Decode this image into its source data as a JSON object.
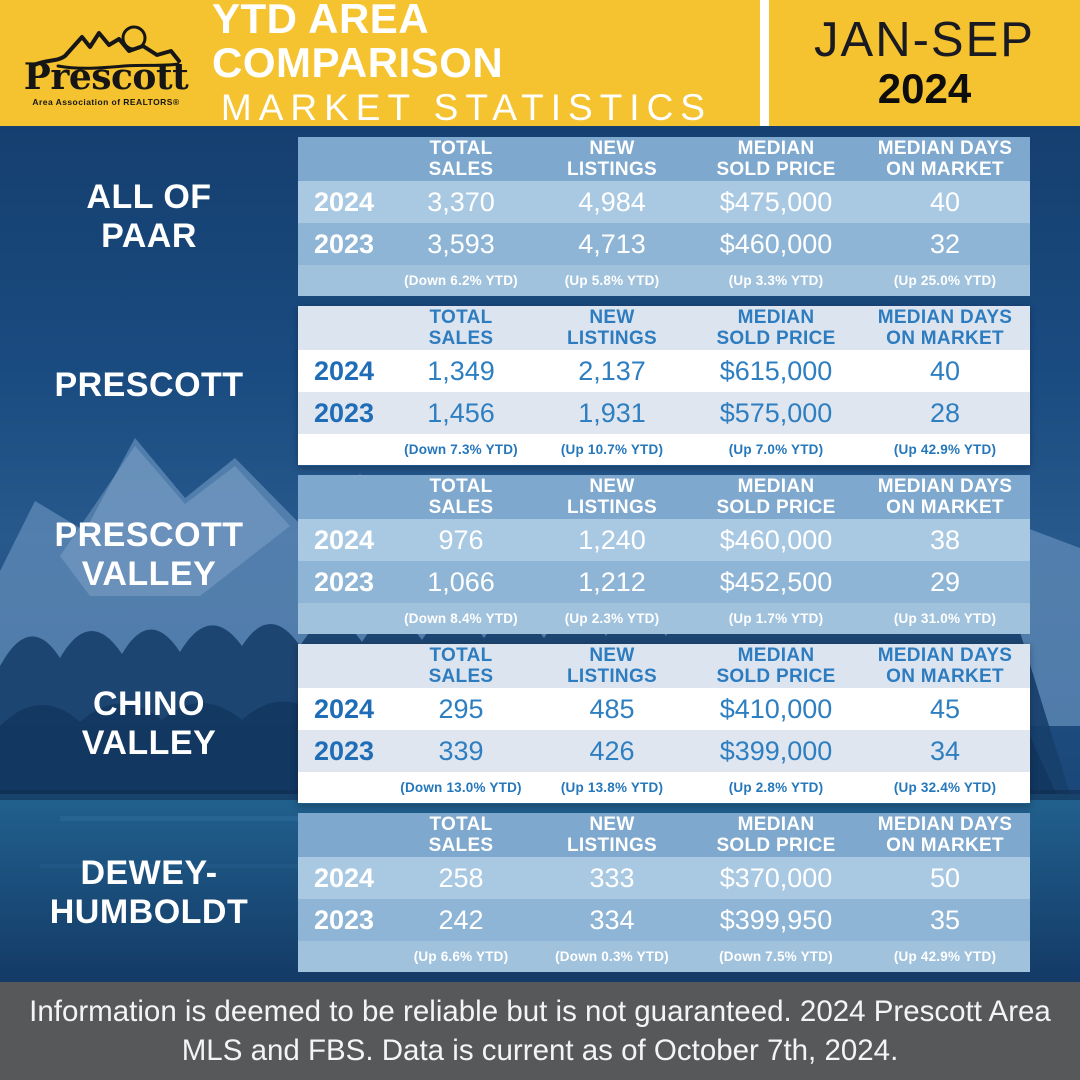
{
  "header": {
    "logo_name": "Prescott",
    "logo_subtitle": "Area Association of REALTORS®",
    "title_line1": "YTD AREA COMPARISON",
    "title_line2": "MARKET STATISTICS",
    "period_months": "JAN-SEP",
    "period_year": "2024"
  },
  "icons": {
    "logo": "mountain-sketch-icon"
  },
  "columns": [
    "TOTAL\nSALES",
    "NEW\nLISTINGS",
    "MEDIAN\nSOLD PRICE",
    "MEDIAN DAYS\nON MARKET"
  ],
  "sections": [
    {
      "area": "ALL OF\nPAAR",
      "style": "overlay",
      "rows": [
        {
          "year": "2024",
          "values": [
            "3,370",
            "4,984",
            "$475,000",
            "40"
          ]
        },
        {
          "year": "2023",
          "values": [
            "3,593",
            "4,713",
            "$460,000",
            "32"
          ]
        }
      ],
      "changes": [
        "(Down 6.2% YTD)",
        "(Up 5.8% YTD)",
        "(Up 3.3% YTD)",
        "(Up 25.0% YTD)"
      ]
    },
    {
      "area": "PRESCOTT",
      "style": "white",
      "rows": [
        {
          "year": "2024",
          "values": [
            "1,349",
            "2,137",
            "$615,000",
            "40"
          ]
        },
        {
          "year": "2023",
          "values": [
            "1,456",
            "1,931",
            "$575,000",
            "28"
          ]
        }
      ],
      "changes": [
        "(Down 7.3% YTD)",
        "(Up 10.7% YTD)",
        "(Up 7.0% YTD)",
        "(Up 42.9% YTD)"
      ]
    },
    {
      "area": "PRESCOTT\nVALLEY",
      "style": "overlay",
      "rows": [
        {
          "year": "2024",
          "values": [
            "976",
            "1,240",
            "$460,000",
            "38"
          ]
        },
        {
          "year": "2023",
          "values": [
            "1,066",
            "1,212",
            "$452,500",
            "29"
          ]
        }
      ],
      "changes": [
        "(Down 8.4% YTD)",
        "(Up 2.3% YTD)",
        "(Up 1.7% YTD)",
        "(Up 31.0% YTD)"
      ]
    },
    {
      "area": "CHINO\nVALLEY",
      "style": "white",
      "rows": [
        {
          "year": "2024",
          "values": [
            "295",
            "485",
            "$410,000",
            "45"
          ]
        },
        {
          "year": "2023",
          "values": [
            "339",
            "426",
            "$399,000",
            "34"
          ]
        }
      ],
      "changes": [
        "(Down 13.0% YTD)",
        "(Up 13.8% YTD)",
        "(Up 2.8% YTD)",
        "(Up 32.4% YTD)"
      ]
    },
    {
      "area": "DEWEY-\nHUMBOLDT",
      "style": "overlay",
      "rows": [
        {
          "year": "2024",
          "values": [
            "258",
            "333",
            "$370,000",
            "50"
          ]
        },
        {
          "year": "2023",
          "values": [
            "242",
            "334",
            "$399,950",
            "35"
          ]
        }
      ],
      "changes": [
        "(Up 6.6% YTD)",
        "(Down 0.3% YTD)",
        "(Down 7.5% YTD)",
        "(Up 42.9% YTD)"
      ]
    }
  ],
  "footer": {
    "disclaimer": "Information is deemed to be reliable but is not guaranteed. 2024 Prescott Area MLS and FBS. Data is current as of October 7th, 2024."
  },
  "colors": {
    "brand_yellow": "#F5C32F",
    "brand_blue": "#1E6DB6",
    "overlay_band_blue": "#8EB5D6",
    "background_navy": "#173F6D",
    "footer_gray": "#57585A",
    "text_white": "#FFFFFF"
  },
  "chart_data": {
    "type": "table",
    "title": "YTD Area Comparison Market Statistics",
    "period": "Jan-Sep 2024",
    "columns": [
      "Area",
      "Year",
      "Total Sales",
      "New Listings",
      "Median Sold Price",
      "Median Days on Market"
    ],
    "rows": [
      [
        "All of PAAR",
        2024,
        3370,
        4984,
        475000,
        40
      ],
      [
        "All of PAAR",
        2023,
        3593,
        4713,
        460000,
        32
      ],
      [
        "Prescott",
        2024,
        1349,
        2137,
        615000,
        40
      ],
      [
        "Prescott",
        2023,
        1456,
        1931,
        575000,
        28
      ],
      [
        "Prescott Valley",
        2024,
        976,
        1240,
        460000,
        38
      ],
      [
        "Prescott Valley",
        2023,
        1066,
        1212,
        452500,
        29
      ],
      [
        "Chino Valley",
        2024,
        295,
        485,
        410000,
        45
      ],
      [
        "Chino Valley",
        2023,
        339,
        426,
        399000,
        34
      ],
      [
        "Dewey-Humboldt",
        2024,
        258,
        333,
        370000,
        50
      ],
      [
        "Dewey-Humboldt",
        2023,
        242,
        334,
        399950,
        35
      ]
    ],
    "ytd_changes": {
      "All of PAAR": [
        "Down 6.2%",
        "Up 5.8%",
        "Up 3.3%",
        "Up 25.0%"
      ],
      "Prescott": [
        "Down 7.3%",
        "Up 10.7%",
        "Up 7.0%",
        "Up 42.9%"
      ],
      "Prescott Valley": [
        "Down 8.4%",
        "Up 2.3%",
        "Up 1.7%",
        "Up 31.0%"
      ],
      "Chino Valley": [
        "Down 13.0%",
        "Up 13.8%",
        "Up 2.8%",
        "Up 32.4%"
      ],
      "Dewey-Humboldt": [
        "Up 6.6%",
        "Down 0.3%",
        "Down 7.5%",
        "Up 42.9%"
      ]
    }
  }
}
